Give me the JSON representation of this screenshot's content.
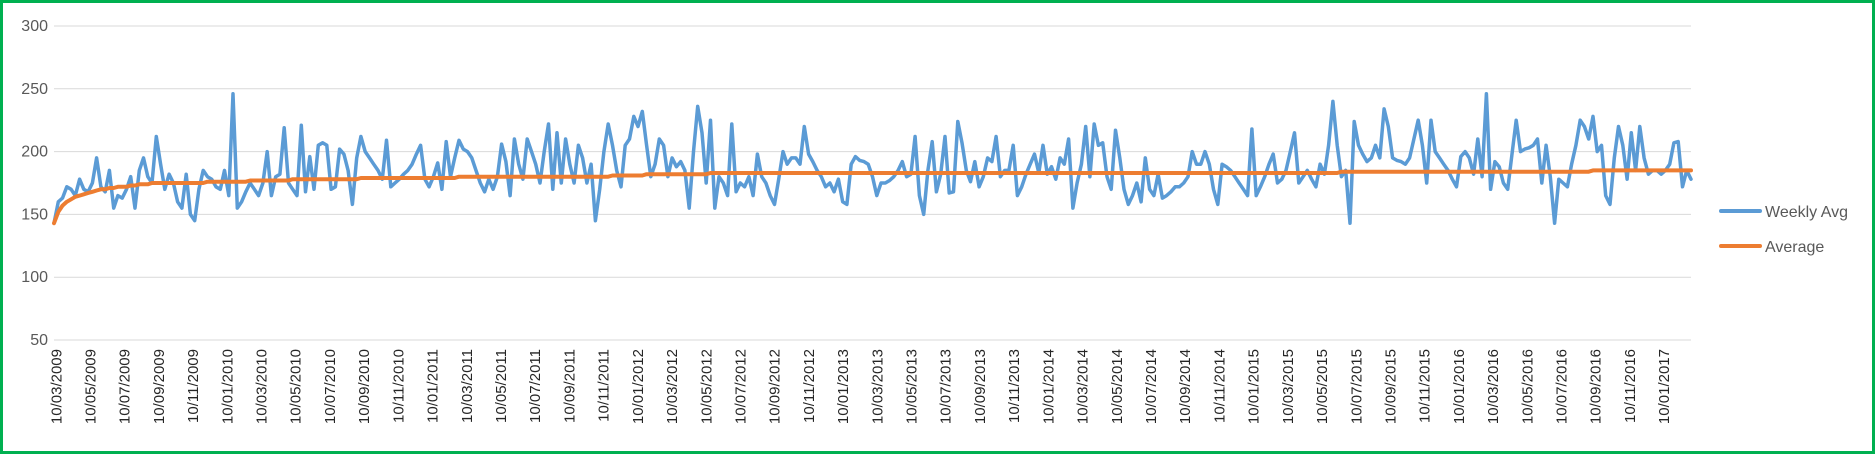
{
  "chart_data": {
    "type": "line",
    "title": "",
    "xlabel": "",
    "ylabel": "",
    "ylim": [
      50,
      300
    ],
    "yticks": [
      50,
      100,
      150,
      200,
      250,
      300
    ],
    "grid": true,
    "legend_position": "right",
    "x_tick_labels": [
      "10/03/2009",
      "10/05/2009",
      "10/07/2009",
      "10/09/2009",
      "10/11/2009",
      "10/01/2010",
      "10/03/2010",
      "10/05/2010",
      "10/07/2010",
      "10/09/2010",
      "10/11/2010",
      "10/01/2011",
      "10/03/2011",
      "10/05/2011",
      "10/07/2011",
      "10/09/2011",
      "10/11/2011",
      "10/01/2012",
      "10/03/2012",
      "10/05/2012",
      "10/07/2012",
      "10/09/2012",
      "10/11/2012",
      "10/01/2013",
      "10/03/2013",
      "10/05/2013",
      "10/07/2013",
      "10/09/2013",
      "10/11/2013",
      "10/01/2014",
      "10/03/2014",
      "10/05/2014",
      "10/07/2014",
      "10/09/2014",
      "10/11/2014",
      "10/01/2015",
      "10/03/2015",
      "10/05/2015",
      "10/07/2015",
      "10/09/2015",
      "10/11/2015",
      "10/01/2016",
      "10/03/2016",
      "10/05/2016",
      "10/07/2016",
      "10/09/2016",
      "10/11/2016",
      "10/01/2017"
    ],
    "series": [
      {
        "name": "Weekly Avg",
        "color": "#5b9bd5",
        "values": [
          143,
          160,
          163,
          172,
          170,
          165,
          178,
          170,
          168,
          175,
          195,
          172,
          168,
          185,
          155,
          165,
          163,
          170,
          180,
          155,
          185,
          195,
          180,
          175,
          212,
          190,
          170,
          182,
          175,
          160,
          155,
          182,
          150,
          145,
          170,
          185,
          180,
          178,
          172,
          170,
          185,
          165,
          246,
          155,
          160,
          168,
          175,
          170,
          165,
          175,
          200,
          165,
          180,
          182,
          219,
          175,
          170,
          165,
          221,
          168,
          196,
          170,
          205,
          207,
          205,
          170,
          172,
          202,
          198,
          185,
          158,
          195,
          212,
          200,
          195,
          190,
          185,
          178,
          209,
          172,
          175,
          178,
          182,
          185,
          190,
          198,
          205,
          178,
          172,
          180,
          191,
          170,
          208,
          180,
          195,
          209,
          202,
          200,
          195,
          185,
          175,
          168,
          178,
          170,
          180,
          206,
          192,
          165,
          210,
          190,
          178,
          210,
          200,
          190,
          175,
          200,
          222,
          170,
          215,
          175,
          210,
          190,
          175,
          205,
          195,
          175,
          190,
          145,
          170,
          200,
          222,
          205,
          185,
          172,
          205,
          210,
          228,
          220,
          232,
          205,
          180,
          190,
          210,
          205,
          180,
          195,
          188,
          192,
          185,
          155,
          200,
          236,
          215,
          175,
          225,
          155,
          180,
          175,
          165,
          222,
          168,
          175,
          172,
          180,
          165,
          198,
          180,
          175,
          165,
          158,
          178,
          200,
          190,
          195,
          195,
          190,
          220,
          198,
          192,
          185,
          180,
          172,
          175,
          168,
          178,
          160,
          158,
          190,
          196,
          193,
          192,
          190,
          180,
          165,
          175,
          175,
          177,
          180,
          185,
          192,
          180,
          182,
          212,
          165,
          150,
          185,
          208,
          168,
          182,
          212,
          167,
          168,
          224,
          207,
          185,
          176,
          192,
          172,
          180,
          195,
          192,
          212,
          180,
          185,
          185,
          205,
          165,
          172,
          182,
          190,
          198,
          183,
          205,
          182,
          188,
          178,
          195,
          190,
          210,
          155,
          175,
          190,
          220,
          180,
          222,
          205,
          207,
          180,
          170,
          217,
          195,
          170,
          158,
          165,
          175,
          160,
          195,
          170,
          165,
          182,
          163,
          165,
          168,
          172,
          172,
          175,
          180,
          200,
          190,
          190,
          200,
          190,
          170,
          158,
          190,
          188,
          185,
          180,
          175,
          170,
          165,
          218,
          165,
          172,
          180,
          190,
          198,
          175,
          178,
          185,
          200,
          215,
          175,
          180,
          185,
          178,
          172,
          190,
          182,
          205,
          240,
          205,
          180,
          185,
          143,
          224,
          205,
          198,
          192,
          195,
          205,
          195,
          234,
          220,
          195,
          193,
          192,
          190,
          195,
          210,
          225,
          205,
          175,
          225,
          200,
          195,
          190,
          185,
          178,
          172,
          196,
          200,
          195,
          182,
          210,
          180,
          246,
          170,
          192,
          188,
          175,
          170,
          198,
          225,
          200,
          202,
          203,
          205,
          210,
          175,
          205,
          180,
          143,
          178,
          175,
          172,
          190,
          205,
          225,
          220,
          210,
          228,
          200,
          205,
          165,
          158,
          195,
          220,
          205,
          178,
          215,
          185,
          220,
          195,
          182,
          185,
          185,
          182,
          185,
          190,
          207,
          208,
          172,
          185,
          178
        ]
      },
      {
        "name": "Average",
        "color": "#ed7d31",
        "values": [
          143,
          152,
          157,
          160,
          162,
          164,
          165,
          166,
          167,
          168,
          169,
          170,
          170,
          171,
          171,
          172,
          172,
          172,
          173,
          173,
          174,
          174,
          174,
          175,
          175,
          175,
          175,
          175,
          175,
          175,
          175,
          175,
          175,
          175,
          175,
          175,
          176,
          176,
          176,
          176,
          176,
          176,
          176,
          176,
          176,
          176,
          177,
          177,
          177,
          177,
          177,
          177,
          177,
          177,
          177,
          177,
          178,
          178,
          178,
          178,
          178,
          178,
          178,
          178,
          178,
          178,
          178,
          178,
          178,
          178,
          178,
          178,
          179,
          179,
          179,
          179,
          179,
          179,
          179,
          179,
          179,
          179,
          179,
          179,
          179,
          179,
          179,
          179,
          179,
          179,
          179,
          179,
          179,
          179,
          179,
          180,
          180,
          180,
          180,
          180,
          180,
          180,
          180,
          180,
          180,
          180,
          180,
          180,
          180,
          180,
          180,
          180,
          180,
          180,
          180,
          180,
          180,
          180,
          180,
          180,
          180,
          180,
          180,
          180,
          180,
          180,
          180,
          180,
          180,
          180,
          180,
          181,
          181,
          181,
          181,
          181,
          181,
          181,
          181,
          182,
          182,
          182,
          182,
          182,
          182,
          182,
          182,
          182,
          182,
          182,
          182,
          182,
          182,
          182,
          183,
          183,
          183,
          183,
          183,
          183,
          183,
          183,
          183,
          183,
          183,
          183,
          183,
          183,
          183,
          183,
          183,
          183,
          183,
          183,
          183,
          183,
          183,
          183,
          183,
          183,
          183,
          183,
          183,
          183,
          183,
          183,
          183,
          183,
          183,
          183,
          183,
          183,
          183,
          183,
          183,
          183,
          183,
          183,
          183,
          183,
          183,
          183,
          183,
          183,
          183,
          183,
          183,
          183,
          183,
          183,
          183,
          183,
          183,
          183,
          183,
          183,
          183,
          183,
          183,
          183,
          183,
          183,
          183,
          183,
          183,
          183,
          183,
          183,
          183,
          183,
          183,
          183,
          183,
          183,
          183,
          183,
          183,
          183,
          183,
          183,
          183,
          183,
          183,
          183,
          183,
          183,
          183,
          183,
          183,
          183,
          183,
          183,
          183,
          183,
          183,
          183,
          183,
          183,
          183,
          183,
          183,
          183,
          183,
          183,
          183,
          183,
          183,
          183,
          183,
          183,
          183,
          183,
          183,
          183,
          183,
          183,
          183,
          183,
          183,
          183,
          183,
          183,
          183,
          183,
          183,
          183,
          183,
          183,
          183,
          183,
          183,
          183,
          183,
          183,
          183,
          183,
          183,
          183,
          183,
          183,
          183,
          183,
          184,
          184,
          184,
          184,
          184,
          184,
          184,
          184,
          184,
          184,
          184,
          184,
          184,
          184,
          184,
          184,
          184,
          184,
          184,
          184,
          184,
          184,
          184,
          184,
          184,
          184,
          184,
          184,
          184,
          184,
          184,
          184,
          184,
          184,
          184,
          184,
          184,
          184,
          184,
          184,
          184,
          184,
          184,
          184,
          184,
          184,
          184,
          184,
          184,
          184,
          184,
          184,
          184,
          184,
          184,
          184,
          184,
          184,
          184,
          185,
          185,
          185,
          185,
          185,
          185,
          185,
          185,
          185,
          185,
          185,
          185,
          185,
          185,
          185,
          185,
          185,
          185,
          185,
          185,
          185,
          185,
          185,
          185
        ]
      }
    ]
  },
  "frame": {
    "border_color": "#00b050",
    "grid_color": "#d9d9d9"
  }
}
